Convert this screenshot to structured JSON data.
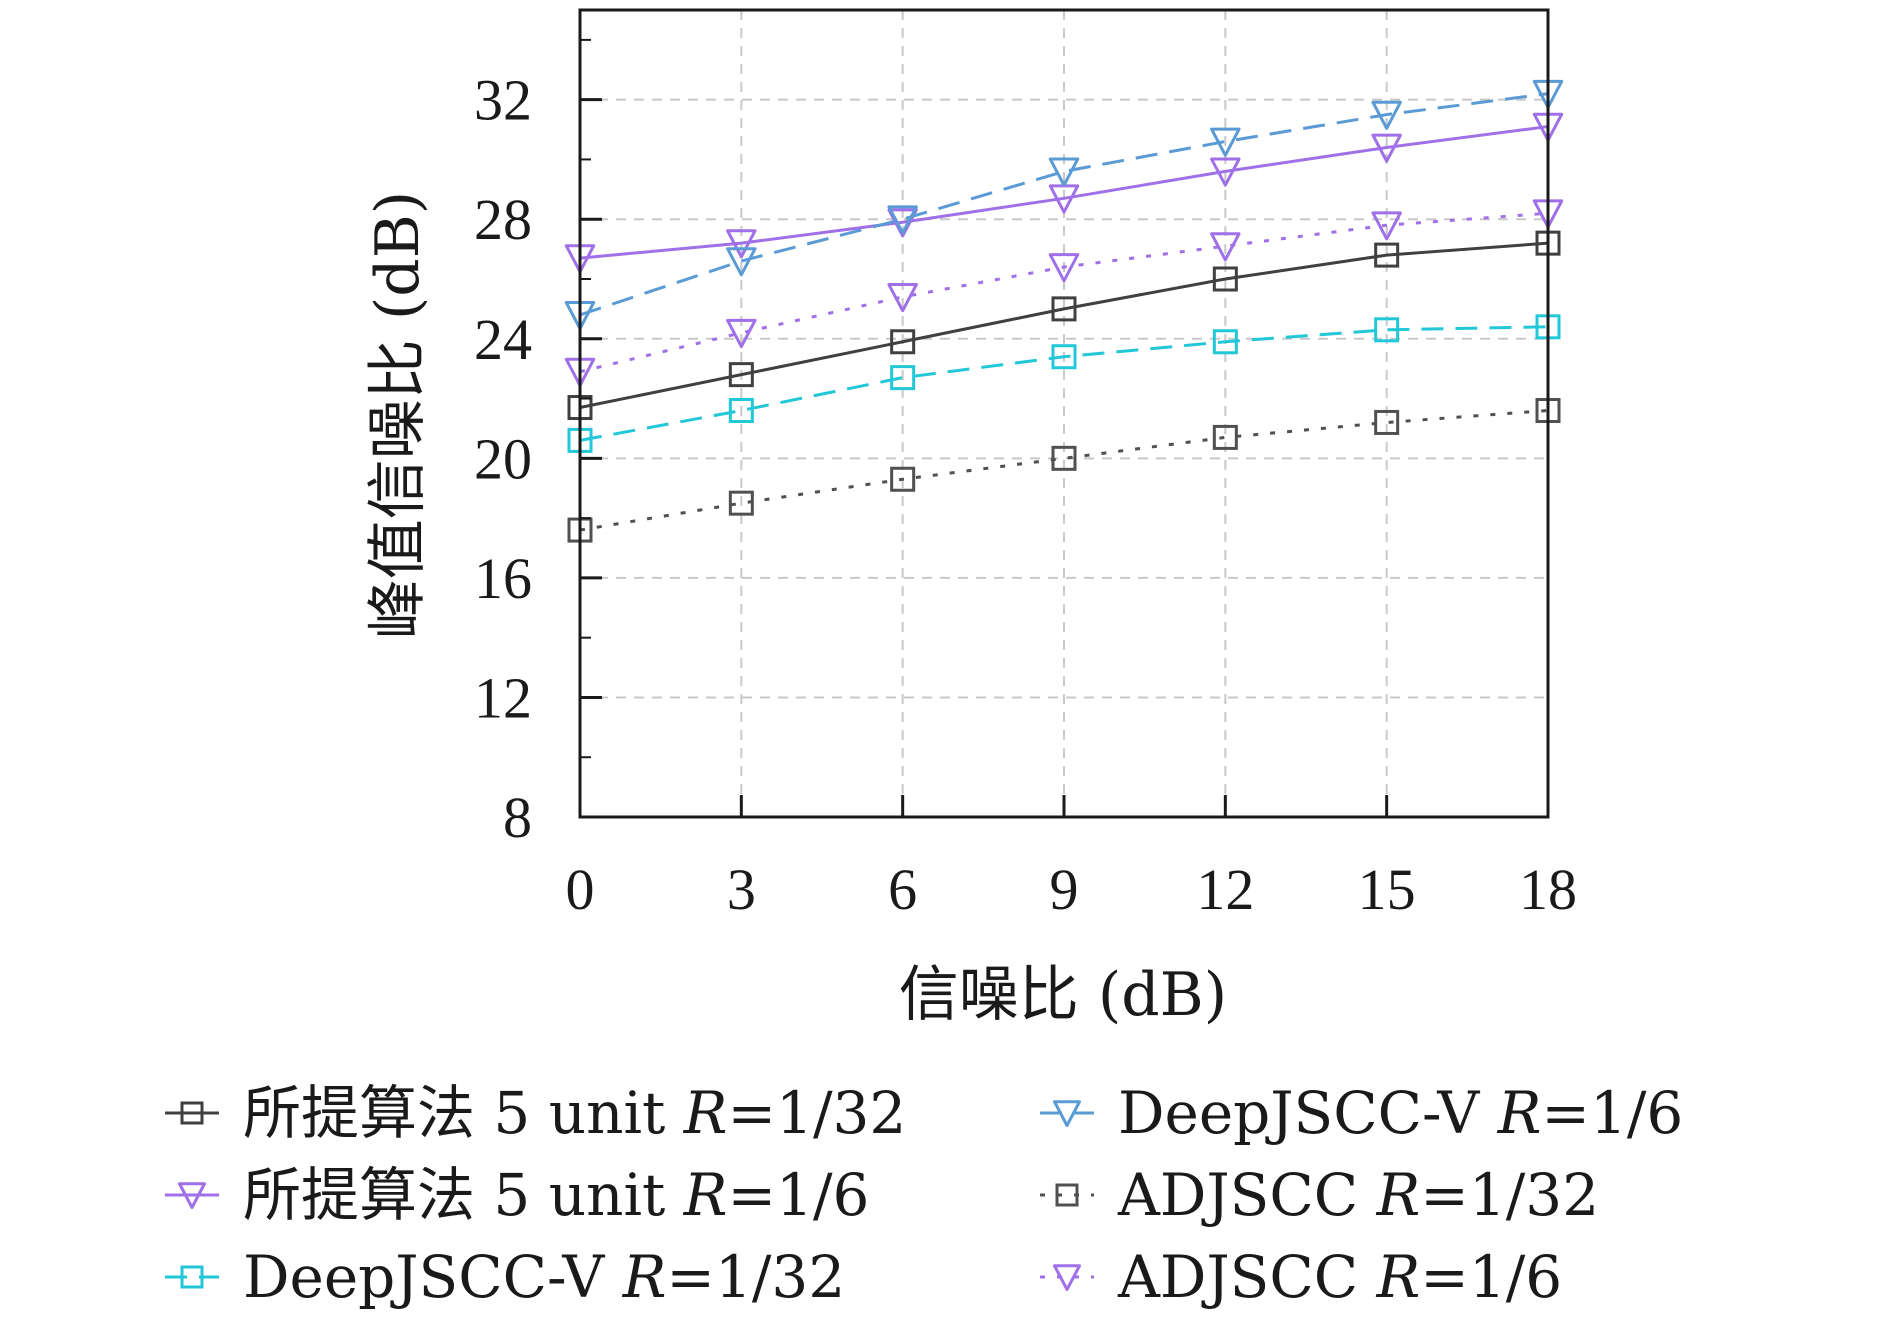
{
  "chart_data": {
    "type": "line",
    "xlabel": "信噪比 (dB)",
    "ylabel": "峰值信噪比 (dB)",
    "x": [
      0,
      3,
      6,
      9,
      12,
      15,
      18
    ],
    "xticks": [
      "0",
      "3",
      "6",
      "9",
      "12",
      "15",
      "18"
    ],
    "yticks": [
      "8",
      "12",
      "16",
      "20",
      "24",
      "28",
      "32"
    ],
    "xlim": [
      0,
      18
    ],
    "ylim": [
      8,
      35
    ],
    "grid": true,
    "legend_position": "bottom",
    "series": [
      {
        "name": "所提算法 5 unit",
        "rate": "R=1/32",
        "color": "#404040",
        "dash": "solid",
        "marker": "square",
        "values": [
          21.7,
          22.8,
          23.9,
          25.0,
          26.0,
          26.8,
          27.2
        ]
      },
      {
        "name": "所提算法 5 unit",
        "rate": "R=1/6",
        "color": "#a070e8",
        "dash": "solid",
        "marker": "triangle-down",
        "values": [
          26.7,
          27.2,
          27.9,
          28.7,
          29.6,
          30.4,
          31.1
        ]
      },
      {
        "name": "DeepJSCC-V",
        "rate": "R=1/32",
        "color": "#22c7d8",
        "dash": "dashed",
        "marker": "square",
        "values": [
          20.6,
          21.6,
          22.7,
          23.4,
          23.9,
          24.3,
          24.4
        ]
      },
      {
        "name": "DeepJSCC-V",
        "rate": "R=1/6",
        "color": "#5b9bd5",
        "dash": "dashed",
        "marker": "triangle-down",
        "values": [
          24.8,
          26.6,
          28.0,
          29.6,
          30.6,
          31.5,
          32.2
        ]
      },
      {
        "name": "ADJSCC",
        "rate": "R=1/32",
        "color": "#505050",
        "dash": "dotted",
        "marker": "square",
        "values": [
          17.6,
          18.5,
          19.3,
          20.0,
          20.7,
          21.2,
          21.6
        ]
      },
      {
        "name": "ADJSCC",
        "rate": "R=1/6",
        "color": "#a070e8",
        "dash": "dotted",
        "marker": "triangle-down",
        "values": [
          22.9,
          24.2,
          25.4,
          26.4,
          27.1,
          27.8,
          28.2
        ]
      }
    ]
  }
}
